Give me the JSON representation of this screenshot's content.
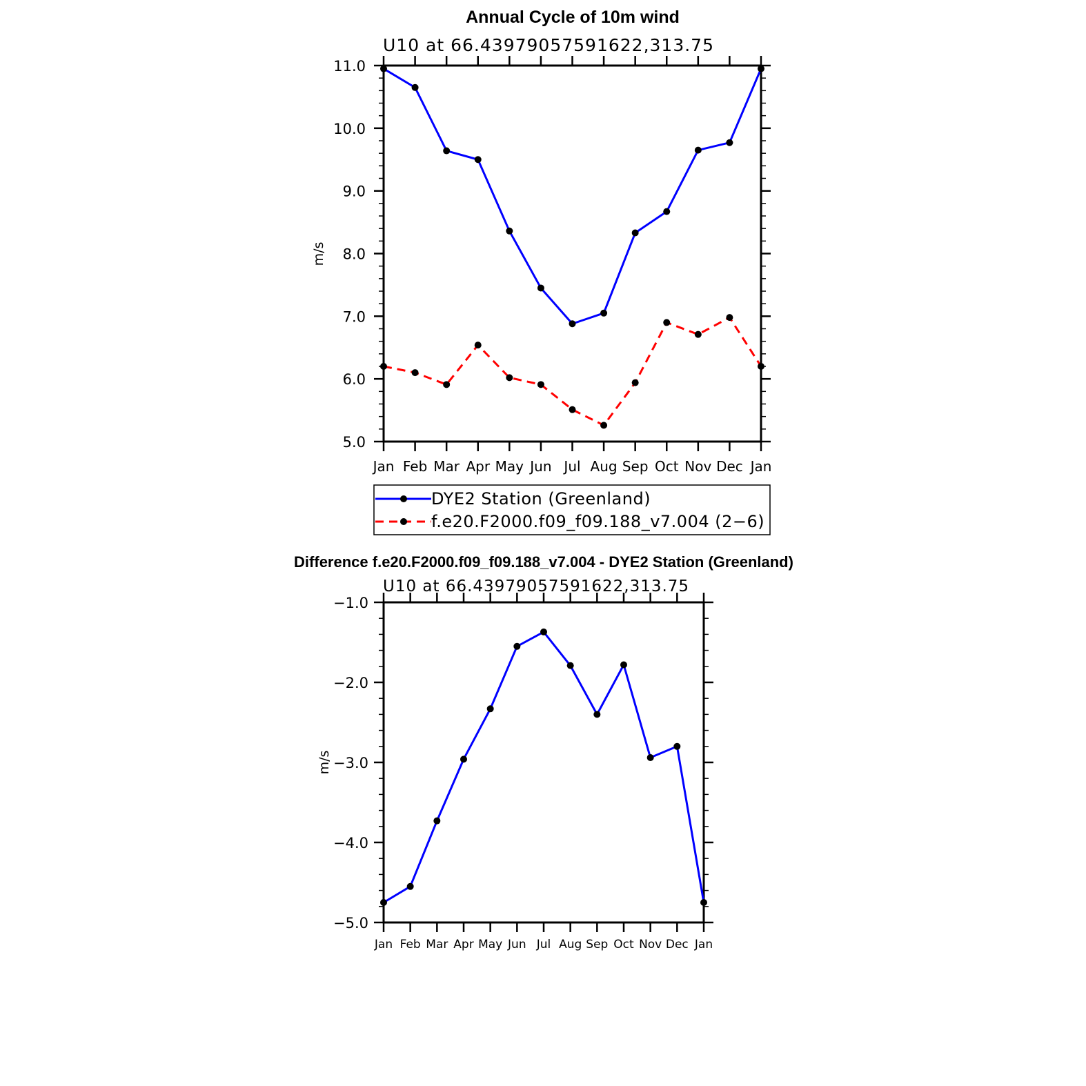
{
  "chart_data": [
    {
      "type": "line",
      "title": "Annual Cycle of 10m wind",
      "subtitle": "U10  at  66.43979057591622,313.75",
      "ylabel": "m/s",
      "xlabel": "",
      "categories": [
        "Jan",
        "Feb",
        "Mar",
        "Apr",
        "May",
        "Jun",
        "Jul",
        "Aug",
        "Sep",
        "Oct",
        "Nov",
        "Dec",
        "Jan"
      ],
      "ylim": [
        5.0,
        11.0
      ],
      "ytick_labels": [
        "5.0",
        "6.0",
        "7.0",
        "8.0",
        "9.0",
        "10.0",
        "11.0"
      ],
      "legend_placement": "bottom",
      "series": [
        {
          "name": "DYE2 Station (Greenland)",
          "color": "#0000ff",
          "style": "solid",
          "marker": "filled-circle",
          "values": [
            10.95,
            10.65,
            9.64,
            9.5,
            8.36,
            7.45,
            6.88,
            7.05,
            8.33,
            8.67,
            9.65,
            9.77,
            10.95
          ]
        },
        {
          "name": "f.e20.F2000.f09_f09.188_v7.004 (2−6)",
          "color": "#ff0000",
          "style": "dashed",
          "marker": "filled-circle",
          "values": [
            6.2,
            6.1,
            5.91,
            6.54,
            6.02,
            5.91,
            5.51,
            5.26,
            5.94,
            6.9,
            6.71,
            6.98,
            6.2
          ]
        }
      ]
    },
    {
      "type": "line",
      "title": "Difference f.e20.F2000.f09_f09.188_v7.004 - DYE2 Station (Greenland)",
      "subtitle": "U10  at  66.43979057591622,313.75",
      "ylabel": "m/s",
      "xlabel": "",
      "categories": [
        "Jan",
        "Feb",
        "Mar",
        "Apr",
        "May",
        "Jun",
        "Jul",
        "Aug",
        "Sep",
        "Oct",
        "Nov",
        "Dec",
        "Jan"
      ],
      "ylim": [
        -5.0,
        -1.0
      ],
      "ytick_labels": [
        "−5.0",
        "−4.0",
        "−3.0",
        "−2.0",
        "−1.0"
      ],
      "series": [
        {
          "color": "#0000ff",
          "style": "solid",
          "marker": "filled-circle",
          "values": [
            -4.75,
            -4.55,
            -3.73,
            -2.96,
            -2.33,
            -1.55,
            -1.37,
            -1.79,
            -2.4,
            -1.78,
            -2.94,
            -2.8,
            -4.75
          ]
        }
      ]
    }
  ]
}
